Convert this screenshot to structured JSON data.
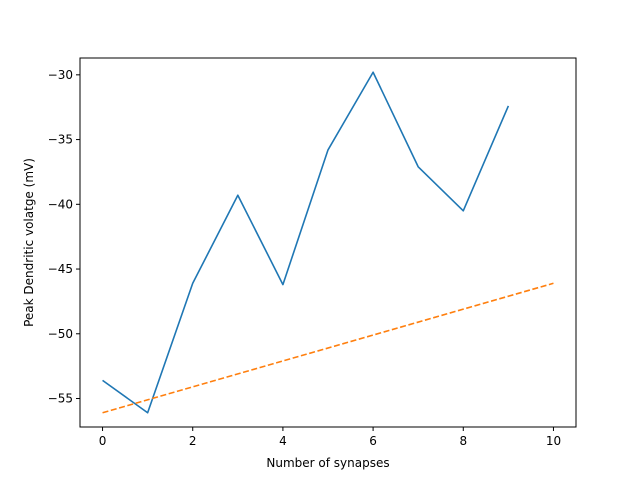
{
  "chart_data": {
    "type": "line",
    "title": "",
    "xlabel": "Number of synapses",
    "ylabel": "Peak Dendritic volatge (mV)",
    "xlim": [
      -0.5,
      10.5
    ],
    "ylim": [
      -57.2,
      -28.7
    ],
    "xticks": [
      0,
      2,
      4,
      6,
      8,
      10
    ],
    "yticks": [
      -55,
      -50,
      -45,
      -40,
      -35,
      -30
    ],
    "xtick_labels": [
      "0",
      "2",
      "4",
      "6",
      "8",
      "10"
    ],
    "ytick_labels": [
      "−55",
      "−50",
      "−45",
      "−40",
      "−35",
      "−30"
    ],
    "grid": false,
    "series": [
      {
        "style": "solid",
        "color": "#1f77b4",
        "x": [
          0,
          1,
          2,
          3,
          4,
          5,
          6,
          7,
          8,
          9
        ],
        "y": [
          -53.6,
          -56.1,
          -46.1,
          -39.3,
          -46.2,
          -35.8,
          -29.8,
          -37.1,
          -40.5,
          -32.4
        ]
      },
      {
        "style": "dashed",
        "color": "#ff7f0e",
        "x": [
          0,
          10
        ],
        "y": [
          -56.1,
          -46.1
        ]
      }
    ]
  }
}
